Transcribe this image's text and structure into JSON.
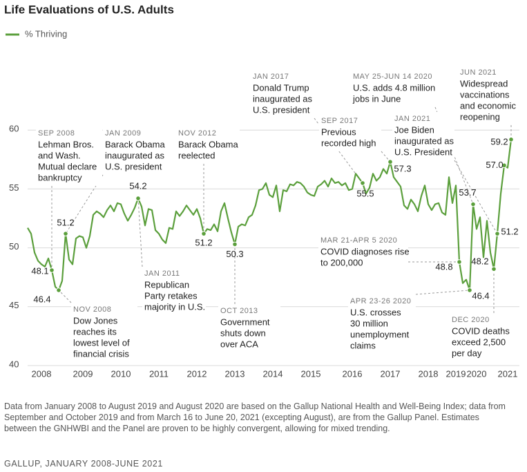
{
  "chart_data": {
    "type": "line",
    "title": "Life Evaluations of U.S. Adults",
    "categories": [
      null,
      null,
      null,
      null,
      "2008",
      null,
      null,
      null,
      null,
      null,
      null,
      null,
      null,
      null,
      null,
      null,
      "2009",
      null,
      null,
      null,
      null,
      null,
      null,
      null,
      null,
      null,
      null,
      "2010",
      null,
      null,
      null,
      null,
      null,
      null,
      null,
      null,
      null,
      null,
      "2011",
      null,
      null,
      null,
      null,
      null,
      null,
      null,
      null,
      null,
      null,
      "2012",
      null,
      null,
      null,
      null,
      null,
      null,
      null,
      null,
      null,
      null,
      "2013",
      null,
      null,
      null,
      null,
      null,
      null,
      null,
      null,
      null,
      null,
      "2014",
      null,
      null,
      null,
      null,
      null,
      null,
      null,
      null,
      null,
      null,
      "2015",
      null,
      null,
      null,
      null,
      null,
      null,
      null,
      null,
      null,
      null,
      null,
      "2016",
      null,
      null,
      null,
      null,
      null,
      null,
      null,
      null,
      null,
      null,
      "2017",
      null,
      null,
      null,
      null,
      null,
      null,
      null,
      null,
      null,
      null,
      "2018",
      null,
      null,
      null,
      null,
      null,
      null,
      null,
      "2019",
      null,
      null,
      null,
      null,
      null,
      "2020",
      null,
      null,
      null,
      null,
      null,
      null,
      null,
      null,
      "2021",
      null
    ],
    "series": [
      {
        "name": "% Thriving",
        "color": "#5b9f3c",
        "values": [
          51.7,
          51.2,
          49.6,
          48.9,
          48.6,
          48.4,
          49.1,
          48.1,
          46.7,
          46.4,
          47.2,
          51.2,
          49.0,
          48.6,
          50.8,
          51.0,
          50.9,
          50.0,
          51.0,
          52.8,
          53.1,
          52.9,
          52.6,
          53.2,
          53.6,
          53.1,
          53.8,
          53.7,
          52.9,
          52.3,
          52.8,
          53.4,
          54.2,
          53.5,
          51.9,
          53.3,
          53.2,
          51.5,
          51.2,
          50.7,
          50.4,
          51.7,
          51.6,
          53.1,
          52.7,
          53.1,
          53.6,
          53.2,
          52.8,
          53.3,
          52.5,
          51.2,
          51.6,
          51.5,
          52.0,
          51.4,
          53.1,
          53.8,
          52.5,
          51.3,
          50.3,
          51.8,
          52.0,
          51.9,
          52.6,
          52.8,
          53.6,
          54.9,
          55.0,
          55.5,
          54.5,
          54.3,
          55.3,
          53.1,
          54.9,
          54.8,
          55.4,
          55.3,
          55.6,
          55.5,
          55.2,
          54.7,
          54.5,
          54.4,
          55.2,
          55.4,
          55.7,
          55.2,
          55.9,
          55.5,
          55.6,
          55.3,
          55.5,
          54.9,
          55.0,
          56.3,
          55.9,
          55.5,
          54.6,
          55.1,
          56.3,
          55.7,
          56.0,
          56.7,
          56.3,
          57.3,
          56.0,
          55.6,
          55.2,
          53.6,
          53.3,
          54.1,
          53.7,
          53.1,
          54.4,
          55.3,
          53.7,
          53.2,
          53.7,
          53.8,
          53.0,
          52.8,
          56.0,
          53.8,
          55.3,
          48.8,
          47.0,
          47.3,
          46.4,
          53.7,
          51.6,
          52.6,
          49.2,
          52.3,
          49.6,
          48.2,
          51.2,
          54.6,
          57.0,
          56.8,
          59.2
        ],
        "value_labels": [
          null,
          null,
          null,
          null,
          null,
          null,
          null,
          "48.1",
          null,
          "46.4",
          null,
          "51.2",
          null,
          null,
          null,
          null,
          null,
          null,
          null,
          null,
          null,
          null,
          null,
          null,
          null,
          null,
          null,
          null,
          null,
          null,
          null,
          null,
          "54.2",
          null,
          null,
          null,
          null,
          null,
          null,
          null,
          null,
          null,
          null,
          null,
          null,
          null,
          null,
          null,
          null,
          null,
          null,
          "51.2",
          null,
          null,
          null,
          null,
          null,
          null,
          null,
          null,
          "50.3",
          null,
          null,
          null,
          null,
          null,
          null,
          null,
          null,
          null,
          null,
          null,
          null,
          null,
          null,
          null,
          null,
          null,
          null,
          null,
          null,
          null,
          null,
          null,
          null,
          null,
          null,
          null,
          null,
          null,
          null,
          null,
          null,
          null,
          null,
          null,
          null,
          "55.5",
          null,
          null,
          null,
          null,
          null,
          null,
          null,
          "57.3",
          null,
          null,
          null,
          null,
          null,
          null,
          null,
          null,
          null,
          null,
          null,
          null,
          null,
          null,
          null,
          null,
          null,
          null,
          null,
          "48.8",
          null,
          null,
          "46.4",
          "53.7",
          null,
          null,
          null,
          null,
          null,
          "48.2",
          "51.2",
          null,
          "57.0",
          null,
          "59.2"
        ]
      }
    ],
    "ylim": [
      40,
      66
    ],
    "yticks": [
      40,
      45,
      50,
      55,
      60
    ],
    "grid": true,
    "legend": "top-left",
    "annotations": [
      {
        "date": "SEP 2008",
        "text": [
          "Lehman Bros.",
          "and Wash.",
          "Mutual declare",
          "bankruptcy"
        ]
      },
      {
        "date": "NOV 2008",
        "text": [
          "Dow Jones",
          "reaches its",
          "lowest level of",
          "financial crisis"
        ]
      },
      {
        "date": "JAN 2009",
        "text": [
          "Barack Obama",
          "inaugurated as",
          "U.S. president"
        ]
      },
      {
        "date": "JAN 2011",
        "text": [
          "Republican",
          "Party retakes",
          "majority in U.S."
        ]
      },
      {
        "date": "NOV 2012",
        "text": [
          "Barack Obama",
          "reelected"
        ]
      },
      {
        "date": "OCT 2013",
        "text": [
          "Government",
          "shuts down",
          "over ACA"
        ]
      },
      {
        "date": "JAN 2017",
        "text": [
          "Donald Trump",
          "inaugurated as",
          "U.S. president"
        ]
      },
      {
        "date": "SEP 2017",
        "text": [
          "Previous",
          "recorded high"
        ]
      },
      {
        "date": "MAY 25-JUN 14 2020",
        "text": [
          "U.S. adds 4.8 million",
          "jobs in June"
        ]
      },
      {
        "date": "JAN 2021",
        "text": [
          "Joe Biden",
          "inaugurated as",
          "U.S. President"
        ]
      },
      {
        "date": "JUN 2021",
        "text": [
          "Widespread",
          "vaccinations",
          "and economic",
          "reopening"
        ]
      },
      {
        "date": "MAR 21-APR 5 2020",
        "text": [
          "COVID diagnoses rise",
          "to 200,000"
        ]
      },
      {
        "date": "APR 23-26 2020",
        "text": [
          "U.S. crosses",
          "30 million",
          "unemployment",
          "claims"
        ]
      },
      {
        "date": "DEC 2020",
        "text": [
          "COVID deaths",
          "exceed 2,500",
          "per day"
        ]
      }
    ],
    "footnote": "Data from January 2008 to August 2019 and August 2020 are based on the Gallup National Health and Well-Being Index; data from September and October 2019 and from March 16 to June 20, 2021 (excepting August), are from the Gallup Panel. Estimates between the GNHWBI and the Panel are proven to be highly convergent, allowing for mixed trending.",
    "source": "GALLUP, JANUARY 2008-JUNE 2021"
  }
}
